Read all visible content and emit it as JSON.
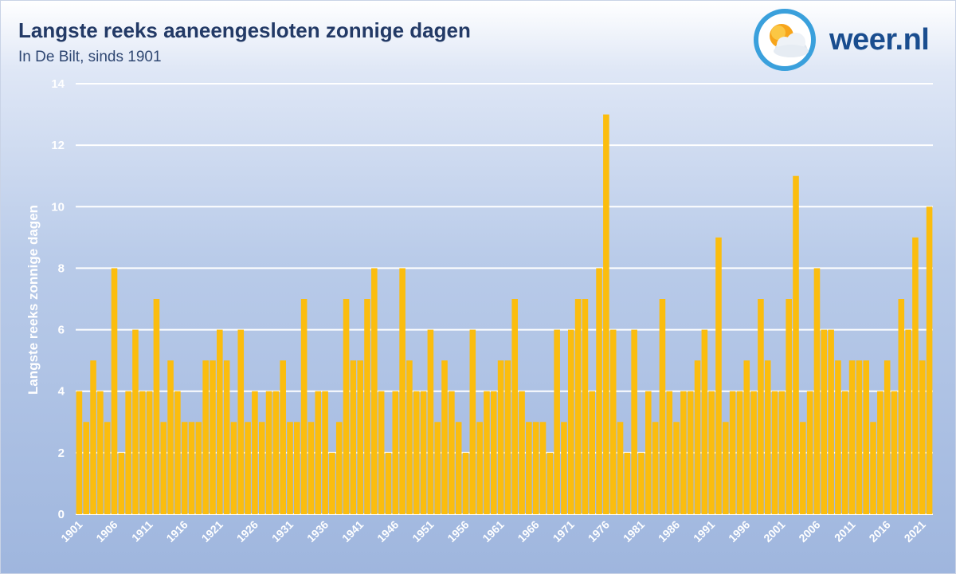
{
  "header": {
    "title": "Langste reeks aaneengesloten zonnige dagen",
    "subtitle": "In De Bilt, sinds 1901"
  },
  "brand": {
    "name": "weer.nl",
    "icon": "sun-cloud-icon"
  },
  "colors": {
    "bar": "#fbbd0e",
    "grid": "#ffffff",
    "title": "#233a66",
    "brand": "#1a4d8f"
  },
  "chart_data": {
    "type": "bar",
    "ylabel": "Langste reeks zonnige dagen",
    "ylim": [
      0,
      14
    ],
    "yticks": [
      0,
      2,
      4,
      6,
      8,
      10,
      12,
      14
    ],
    "grid": true,
    "x_start": 1901,
    "xtick_labels": [
      "1901",
      "1906",
      "1911",
      "1916",
      "1921",
      "1926",
      "1931",
      "1936",
      "1941",
      "1946",
      "1951",
      "1956",
      "1961",
      "1966",
      "1971",
      "1976",
      "1981",
      "1986",
      "1991",
      "1996",
      "2001",
      "2006",
      "2011",
      "2016",
      "2021"
    ],
    "categories": [
      "1901",
      "1902",
      "1903",
      "1904",
      "1905",
      "1906",
      "1907",
      "1908",
      "1909",
      "1910",
      "1911",
      "1912",
      "1913",
      "1914",
      "1915",
      "1916",
      "1917",
      "1918",
      "1919",
      "1920",
      "1921",
      "1922",
      "1923",
      "1924",
      "1925",
      "1926",
      "1927",
      "1928",
      "1929",
      "1930",
      "1931",
      "1932",
      "1933",
      "1934",
      "1935",
      "1936",
      "1937",
      "1938",
      "1939",
      "1940",
      "1941",
      "1942",
      "1943",
      "1944",
      "1945",
      "1946",
      "1947",
      "1948",
      "1949",
      "1950",
      "1951",
      "1952",
      "1953",
      "1954",
      "1955",
      "1956",
      "1957",
      "1958",
      "1959",
      "1960",
      "1961",
      "1962",
      "1963",
      "1964",
      "1965",
      "1966",
      "1967",
      "1968",
      "1969",
      "1970",
      "1971",
      "1972",
      "1973",
      "1974",
      "1975",
      "1976",
      "1977",
      "1978",
      "1979",
      "1980",
      "1981",
      "1982",
      "1983",
      "1984",
      "1985",
      "1986",
      "1987",
      "1988",
      "1989",
      "1990",
      "1991",
      "1992",
      "1993",
      "1994",
      "1995",
      "1996",
      "1997",
      "1998",
      "1999",
      "2000",
      "2001",
      "2002",
      "2003",
      "2004",
      "2005",
      "2006",
      "2007",
      "2008",
      "2009",
      "2010",
      "2011",
      "2012",
      "2013",
      "2014",
      "2015",
      "2016",
      "2017",
      "2018",
      "2019",
      "2020",
      "2021",
      "2022"
    ],
    "values": [
      4,
      3,
      5,
      4,
      3,
      8,
      2,
      4,
      6,
      4,
      4,
      7,
      3,
      5,
      4,
      3,
      3,
      3,
      5,
      5,
      6,
      5,
      3,
      6,
      3,
      4,
      3,
      4,
      4,
      5,
      3,
      3,
      7,
      3,
      4,
      4,
      2,
      3,
      7,
      5,
      5,
      7,
      8,
      4,
      2,
      4,
      8,
      5,
      4,
      4,
      6,
      3,
      5,
      4,
      3,
      2,
      6,
      3,
      4,
      4,
      5,
      5,
      7,
      4,
      3,
      3,
      3,
      2,
      6,
      3,
      6,
      7,
      7,
      4,
      8,
      13,
      6,
      3,
      2,
      6,
      2,
      4,
      3,
      7,
      4,
      3,
      4,
      4,
      5,
      6,
      4,
      9,
      3,
      4,
      4,
      5,
      4,
      7,
      5,
      4,
      4,
      7,
      11,
      3,
      4,
      8,
      6,
      6,
      5,
      4,
      5,
      5,
      5,
      3,
      4,
      5,
      4,
      7,
      6,
      9,
      5,
      10
    ]
  }
}
